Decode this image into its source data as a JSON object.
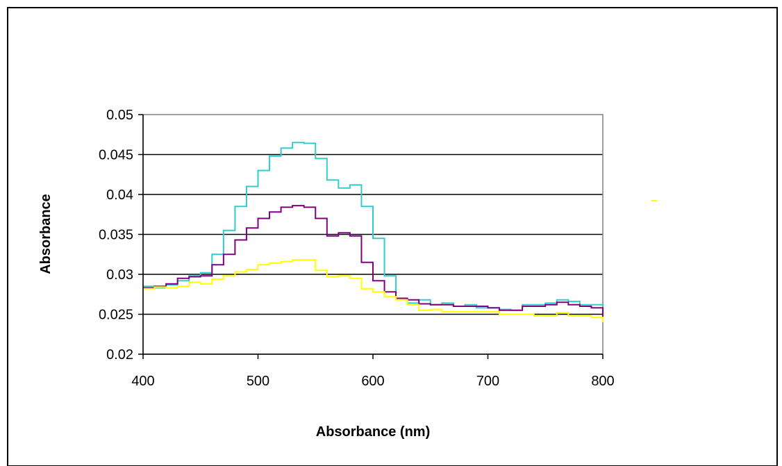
{
  "chart_data": {
    "type": "line",
    "title": "",
    "xlabel": "Absorbance (nm)",
    "ylabel": "Absorbance",
    "xlim": [
      400,
      800
    ],
    "ylim": [
      0.02,
      0.05
    ],
    "x_ticks": [
      "400",
      "500",
      "600",
      "700",
      "800"
    ],
    "y_ticks": [
      "0.02",
      "0.025",
      "0.03",
      "0.035",
      "0.04",
      "0.045",
      "0.05"
    ],
    "grid": "horizontal major gridlines",
    "legend": "none",
    "series": [
      {
        "color": "#33CCCC",
        "x": [
          400,
          410,
          420,
          430,
          440,
          450,
          460,
          470,
          480,
          490,
          500,
          510,
          520,
          530,
          540,
          550,
          560,
          570,
          580,
          590,
          600,
          610,
          620,
          630,
          640,
          650,
          660,
          670,
          680,
          690,
          700,
          710,
          720,
          730,
          740,
          750,
          760,
          770,
          780,
          790,
          800
        ],
        "y": [
          0.0285,
          0.0283,
          0.0287,
          0.0292,
          0.0298,
          0.0302,
          0.0325,
          0.0355,
          0.0385,
          0.041,
          0.043,
          0.0448,
          0.0458,
          0.0465,
          0.0464,
          0.0445,
          0.0418,
          0.0408,
          0.0412,
          0.0385,
          0.0345,
          0.0298,
          0.027,
          0.0264,
          0.0268,
          0.0262,
          0.0264,
          0.026,
          0.0262,
          0.0258,
          0.0258,
          0.0256,
          0.0255,
          0.0262,
          0.0262,
          0.0264,
          0.0268,
          0.0266,
          0.0262,
          0.0262,
          0.025
        ]
      },
      {
        "color": "#800080",
        "x": [
          400,
          410,
          420,
          430,
          440,
          450,
          460,
          470,
          480,
          490,
          500,
          510,
          520,
          530,
          540,
          550,
          560,
          570,
          580,
          590,
          600,
          610,
          620,
          630,
          640,
          650,
          660,
          670,
          680,
          690,
          700,
          710,
          720,
          730,
          740,
          750,
          760,
          770,
          780,
          790,
          800
        ],
        "y": [
          0.0283,
          0.0285,
          0.0288,
          0.0295,
          0.0297,
          0.0298,
          0.0312,
          0.0325,
          0.0343,
          0.0358,
          0.037,
          0.0378,
          0.0384,
          0.0386,
          0.0384,
          0.037,
          0.0348,
          0.0352,
          0.0348,
          0.0315,
          0.0292,
          0.0278,
          0.027,
          0.0268,
          0.0263,
          0.0262,
          0.0262,
          0.026,
          0.026,
          0.026,
          0.0258,
          0.0255,
          0.0255,
          0.026,
          0.026,
          0.0262,
          0.0265,
          0.0262,
          0.026,
          0.0258,
          0.0245
        ]
      },
      {
        "color": "#FFFF00",
        "x": [
          400,
          410,
          420,
          430,
          440,
          450,
          460,
          470,
          480,
          490,
          500,
          510,
          520,
          530,
          540,
          550,
          560,
          570,
          580,
          590,
          600,
          610,
          620,
          630,
          640,
          650,
          660,
          670,
          680,
          690,
          700,
          710,
          720,
          730,
          740,
          750,
          760,
          770,
          780,
          790,
          800
        ],
        "y": [
          0.0282,
          0.0284,
          0.0283,
          0.0285,
          0.029,
          0.0288,
          0.0294,
          0.0298,
          0.0303,
          0.0306,
          0.0312,
          0.0314,
          0.0316,
          0.0318,
          0.0318,
          0.0305,
          0.0297,
          0.0298,
          0.0295,
          0.0282,
          0.0278,
          0.0272,
          0.0268,
          0.0262,
          0.0255,
          0.0256,
          0.0253,
          0.0253,
          0.0253,
          0.0253,
          0.0253,
          0.025,
          0.025,
          0.025,
          0.0248,
          0.0248,
          0.0252,
          0.0248,
          0.0248,
          0.0246,
          0.024
        ]
      }
    ]
  }
}
